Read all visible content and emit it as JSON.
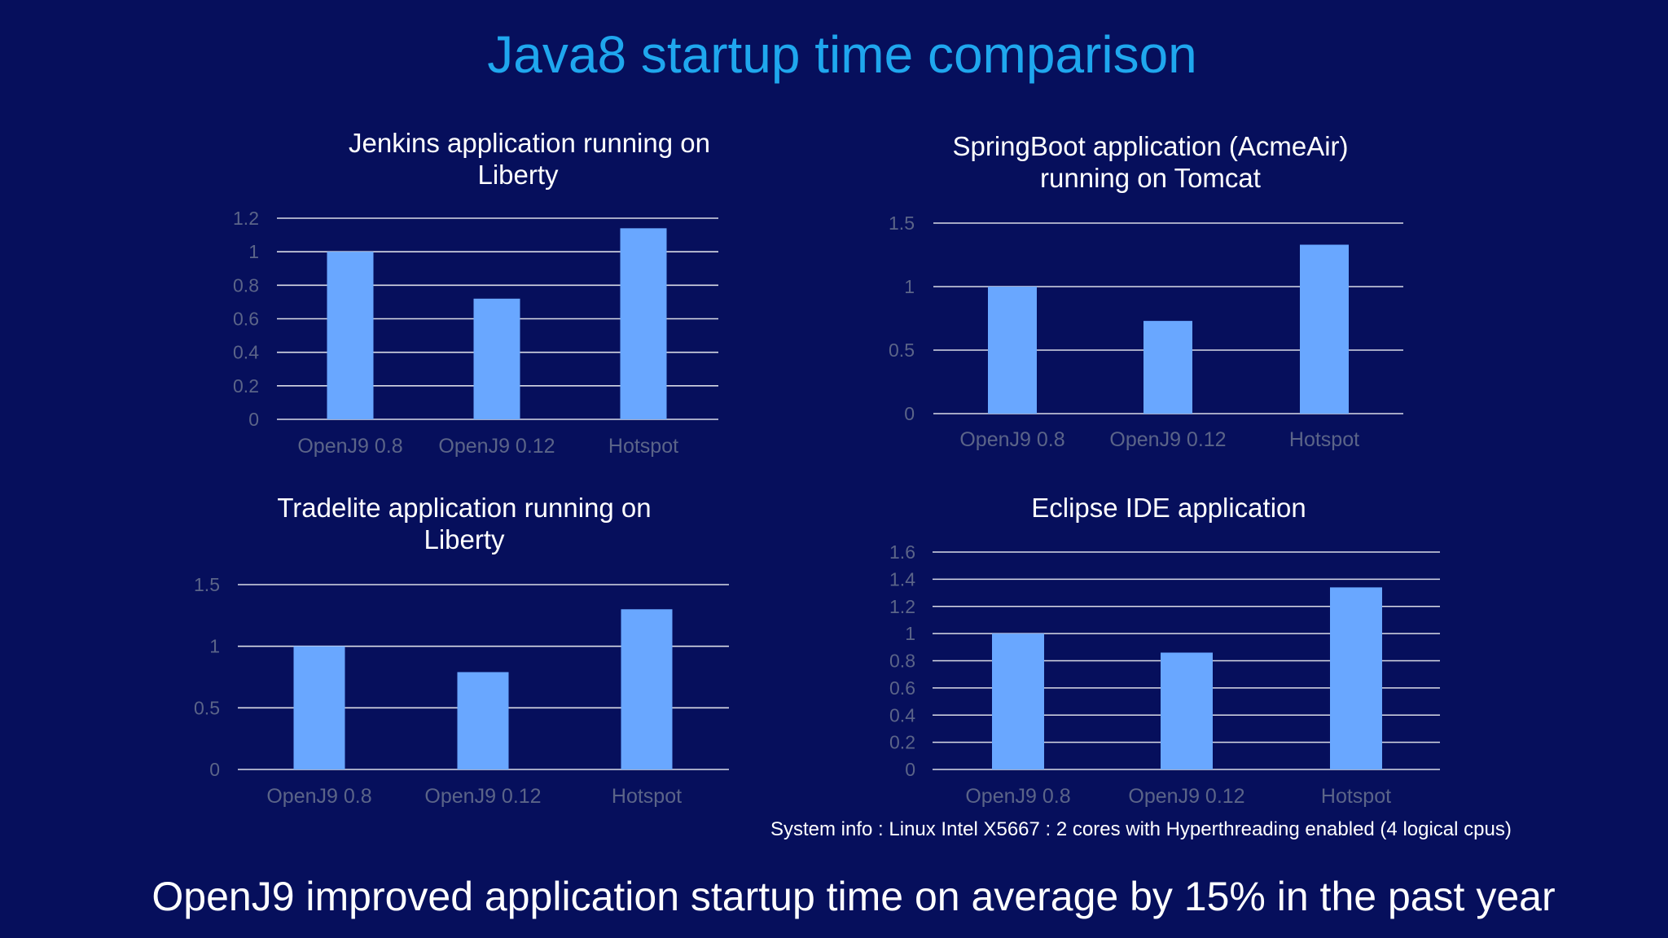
{
  "slide": {
    "title": "Java8 startup time comparison",
    "system_info": "System info : Linux Intel X5667 : 2 cores with Hyperthreading enabled (4 logical cpus)",
    "footer": "OpenJ9 improved application startup time on average by 15% in the past year"
  },
  "colors": {
    "bar": "#69a7ff",
    "title": "#1fa7ee",
    "background": "#060f5c"
  },
  "chart_data": [
    {
      "type": "bar",
      "title_lines": [
        "Jenkins application running on",
        "Liberty"
      ],
      "categories": [
        "OpenJ9 0.8",
        "OpenJ9 0.12",
        "Hotspot"
      ],
      "values": [
        1.0,
        0.72,
        1.14
      ],
      "ylim": [
        0,
        1.2
      ],
      "yticks": [
        "0",
        "0.2",
        "0.4",
        "0.6",
        "0.8",
        "1",
        "1.2"
      ],
      "grid": true,
      "legend": "none"
    },
    {
      "type": "bar",
      "title_lines": [
        "SpringBoot application (AcmeAir)",
        "running on Tomcat"
      ],
      "categories": [
        "OpenJ9 0.8",
        "OpenJ9 0.12",
        "Hotspot"
      ],
      "values": [
        1.0,
        0.73,
        1.33
      ],
      "ylim": [
        0,
        1.5
      ],
      "yticks": [
        "0",
        "0.5",
        "1",
        "1.5"
      ],
      "grid": true,
      "legend": "none"
    },
    {
      "type": "bar",
      "title_lines": [
        "Tradelite application running on",
        "Liberty"
      ],
      "categories": [
        "OpenJ9 0.8",
        "OpenJ9 0.12",
        "Hotspot"
      ],
      "values": [
        1.0,
        0.79,
        1.3
      ],
      "ylim": [
        0,
        1.5
      ],
      "yticks": [
        "0",
        "0.5",
        "1",
        "1.5"
      ],
      "grid": true,
      "legend": "none"
    },
    {
      "type": "bar",
      "title_lines": [
        "Eclipse IDE application"
      ],
      "categories": [
        "OpenJ9 0.8",
        "OpenJ9 0.12",
        "Hotspot"
      ],
      "values": [
        1.0,
        0.86,
        1.34
      ],
      "ylim": [
        0,
        1.6
      ],
      "yticks": [
        "0",
        "0.2",
        "0.4",
        "0.6",
        "0.8",
        "1",
        "1.2",
        "1.4",
        "1.6"
      ],
      "grid": true,
      "legend": "none"
    }
  ]
}
